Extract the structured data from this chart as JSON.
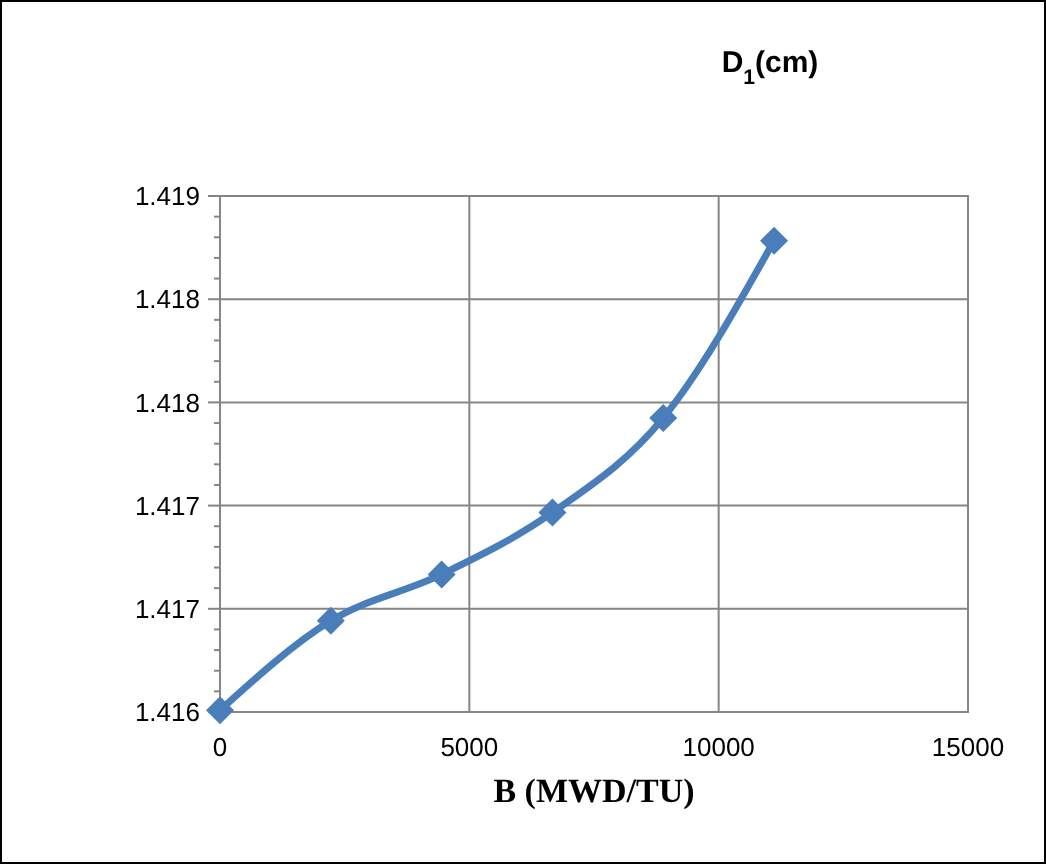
{
  "chart_data": {
    "type": "line",
    "title": "D$_{1}$(cm)",
    "xlabel": "B (MWD/TU)",
    "x": [
      0,
      2222,
      4444,
      6667,
      8889,
      11111
    ],
    "series": [
      {
        "color": "#4a7ebb",
        "values": [
          1.41601,
          1.41653,
          1.4168,
          1.41716,
          1.41771,
          1.41874
        ]
      }
    ],
    "xlim": [
      0,
      15000
    ],
    "xticks": [
      0,
      5000,
      10000,
      15000
    ],
    "ylim": [
      1.416,
      1.419
    ],
    "yticks": [
      {
        "value": 1.416,
        "label": "1.416"
      },
      {
        "value": 1.4166,
        "label": "1.417"
      },
      {
        "value": 1.4172,
        "label": "1.417"
      },
      {
        "value": 1.4178,
        "label": "1.418"
      },
      {
        "value": 1.4184,
        "label": "1.418"
      },
      {
        "value": 1.419,
        "label": "1.419"
      }
    ],
    "grid": true,
    "marker": "diamond",
    "line_style": "solid"
  }
}
